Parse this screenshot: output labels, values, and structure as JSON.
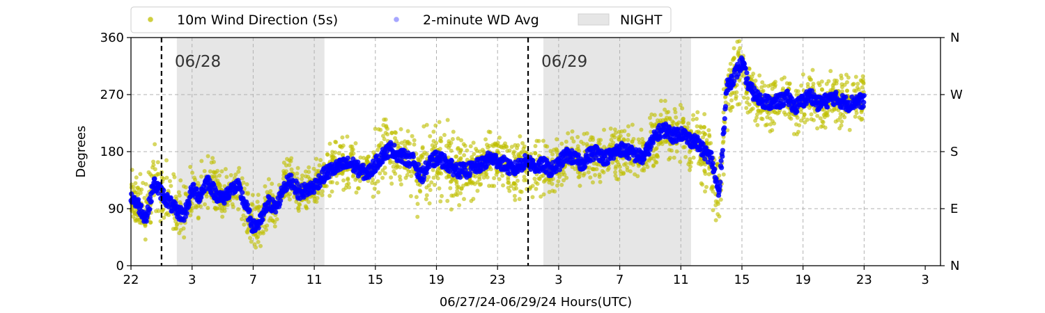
{
  "chart_data": {
    "type": "scatter",
    "title": "",
    "xlabel": "06/27/24-06/29/24  Hours(UTC)",
    "ylabel": "Degrees",
    "x_start": "06/27 22:00",
    "x_end": "06/30 03:00",
    "xlim_hours_utc": [
      22,
      75
    ],
    "ylim": [
      0,
      360
    ],
    "x_tick_labels": [
      "22",
      "3",
      "7",
      "11",
      "15",
      "19",
      "23",
      "3",
      "7",
      "11",
      "15",
      "19",
      "23",
      "3"
    ],
    "y_tick_labels": [
      "0",
      "90",
      "180",
      "270",
      "360"
    ],
    "y2_tick_labels": [
      "N",
      "E",
      "S",
      "W",
      "N"
    ],
    "grid": true,
    "legend": {
      "placement": "top",
      "items": [
        {
          "label": "10m Wind Direction (5s)",
          "color": "#bfbf00",
          "marker": "dot"
        },
        {
          "label": "2-minute WD Avg",
          "color": "#0000ff",
          "marker": "dot"
        },
        {
          "label": "NIGHT",
          "color": "#e6e6e6",
          "marker": "patch"
        }
      ]
    },
    "day_markers": [
      {
        "label": "06/28",
        "time": "06/28 00:00"
      },
      {
        "label": "06/29",
        "time": "06/29 00:00"
      }
    ],
    "night_periods": [
      {
        "start": "06/28 01:00",
        "end": "06/28 10:40"
      },
      {
        "start": "06/29 01:00",
        "end": "06/29 10:40"
      }
    ],
    "series": [
      {
        "name": "2-minute WD Avg",
        "color": "#0000ff",
        "x_hours_from_start": [
          0,
          0.5,
          1,
          1.5,
          2,
          2.5,
          3,
          3.5,
          4,
          4.5,
          5,
          5.5,
          6,
          6.5,
          7,
          7.5,
          8,
          8.5,
          9,
          9.5,
          10,
          10.5,
          11,
          11.5,
          12,
          12.5,
          13,
          13.5,
          14,
          14.5,
          15,
          15.5,
          16,
          16.5,
          17,
          17.5,
          18,
          18.5,
          19,
          19.5,
          20,
          20.5,
          21,
          21.5,
          22,
          22.5,
          23,
          23.5,
          24,
          24.5,
          25,
          25.5,
          26,
          26.5,
          27,
          27.5,
          28,
          28.5,
          29,
          29.5,
          30,
          30.5,
          31,
          31.5,
          32,
          32.5,
          33,
          33.5,
          34,
          34.5,
          35,
          35.5,
          36,
          36.5,
          37,
          37.5,
          38,
          38.5,
          39,
          39.5,
          40,
          40.5,
          41,
          41.5,
          42,
          42.5,
          43,
          43.5,
          44,
          44.5,
          45,
          45.5,
          46,
          46.5,
          47,
          47.5,
          48
        ],
        "y_degrees": [
          110,
          95,
          75,
          130,
          115,
          100,
          85,
          80,
          120,
          110,
          135,
          115,
          105,
          120,
          125,
          95,
          60,
          70,
          100,
          90,
          125,
          135,
          115,
          120,
          125,
          140,
          150,
          155,
          160,
          160,
          150,
          145,
          160,
          175,
          185,
          175,
          170,
          165,
          140,
          160,
          170,
          165,
          155,
          150,
          150,
          155,
          160,
          170,
          165,
          160,
          150,
          160,
          165,
          155,
          160,
          150,
          160,
          175,
          170,
          160,
          175,
          180,
          170,
          175,
          185,
          180,
          175,
          170,
          190,
          210,
          215,
          205,
          210,
          200,
          195,
          180,
          170,
          110,
          280,
          300,
          320,
          280,
          265,
          260,
          255,
          260,
          265,
          250,
          260,
          270,
          255,
          260,
          265,
          260,
          255,
          260,
          260
        ]
      },
      {
        "name": "10m Wind Direction (5s)",
        "color": "#bfbf00",
        "envelope_lower_degrees": [
          70,
          60,
          40,
          80,
          70,
          60,
          50,
          40,
          70,
          70,
          90,
          80,
          70,
          80,
          85,
          55,
          20,
          30,
          60,
          50,
          90,
          100,
          85,
          90,
          95,
          105,
          110,
          115,
          120,
          120,
          110,
          105,
          110,
          120,
          130,
          120,
          110,
          90,
          60,
          90,
          100,
          90,
          80,
          80,
          95,
          105,
          110,
          120,
          115,
          110,
          100,
          105,
          110,
          100,
          110,
          100,
          110,
          125,
          120,
          115,
          125,
          130,
          125,
          130,
          135,
          130,
          130,
          135,
          150,
          160,
          165,
          160,
          160,
          150,
          140,
          120,
          100,
          40,
          200,
          230,
          250,
          220,
          220,
          215,
          210,
          215,
          220,
          205,
          215,
          225,
          210,
          215,
          220,
          215,
          210,
          215,
          215
        ],
        "envelope_upper_degrees": [
          170,
          150,
          130,
          200,
          180,
          160,
          140,
          130,
          170,
          160,
          185,
          165,
          150,
          170,
          175,
          150,
          110,
          130,
          160,
          150,
          165,
          180,
          160,
          165,
          165,
          180,
          195,
          200,
          205,
          205,
          195,
          190,
          220,
          235,
          240,
          230,
          230,
          225,
          220,
          230,
          235,
          240,
          230,
          230,
          195,
          200,
          205,
          215,
          210,
          205,
          195,
          205,
          210,
          200,
          205,
          195,
          205,
          220,
          215,
          205,
          220,
          225,
          215,
          220,
          235,
          230,
          220,
          215,
          240,
          260,
          265,
          250,
          260,
          250,
          250,
          240,
          240,
          200,
          330,
          350,
          360,
          330,
          310,
          305,
          300,
          305,
          310,
          295,
          305,
          315,
          300,
          305,
          310,
          305,
          300,
          305,
          305
        ]
      }
    ]
  }
}
